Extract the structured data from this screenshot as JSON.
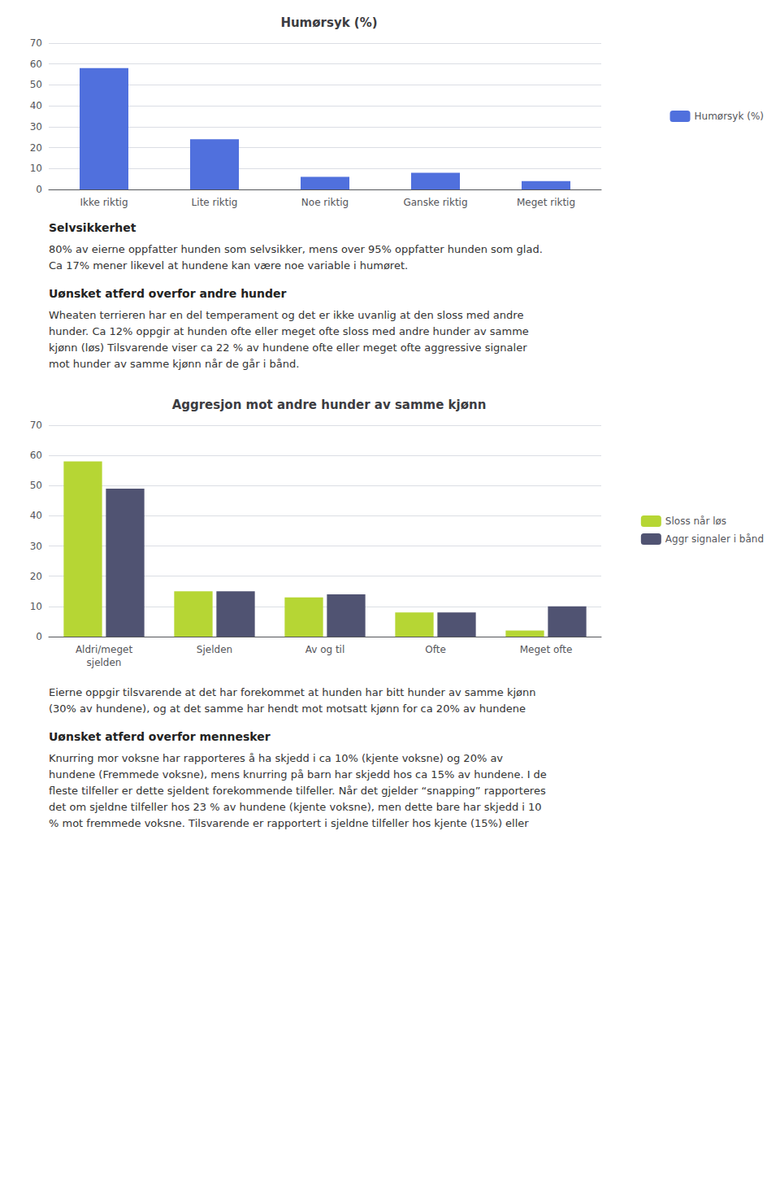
{
  "chart_data": [
    {
      "type": "bar",
      "title": "Humørsyk (%)",
      "categories": [
        "Ikke riktig",
        "Lite riktig",
        "Noe riktig",
        "Ganske riktig",
        "Meget riktig"
      ],
      "series": [
        {
          "name": "Humørsyk (%)",
          "values": [
            58,
            24,
            6,
            8,
            4
          ]
        }
      ],
      "ylim": [
        0,
        70
      ],
      "yticks": [
        0,
        10,
        20,
        30,
        40,
        50,
        60,
        70
      ],
      "grid": true,
      "legend": "right",
      "annotations": [
        {
          "title": "Selvsikkerhet",
          "text": "80% av eierne oppfatter hunden som selvsikker, mens over 95% oppfatter hunden som glad.\nCa 17% mener likevel at hundene kan være noe variable i humøret."
        },
        {
          "title": "Uønsket atferd overfor andre hunder",
          "text": "Wheaten terrieren har en del temperament og det er ikke uvanlig at den sloss med andre\nhunder. Ca 12% oppgir at hunden ofte eller meget ofte sloss med andre hunder av samme\nkjønn (løs) Tilsvarende viser ca 22 % av hundene ofte eller meget ofte aggressive signaler\nmot hunder av samme kjønn når de går i bånd."
        }
      ]
    },
    {
      "type": "bar",
      "title": "Aggresjon mot andre hunder av samme kjønn",
      "categories": [
        "Aldri/meget\nsjelden",
        "Sjelden",
        "Av og til",
        "Ofte",
        "Meget ofte"
      ],
      "series": [
        {
          "name": "Sloss når løs",
          "values": [
            58,
            15,
            13,
            8,
            2
          ]
        },
        {
          "name": "Aggr signaler i bånd",
          "values": [
            49,
            15,
            14,
            8,
            10
          ]
        }
      ],
      "ylim": [
        0,
        70
      ],
      "yticks": [
        0,
        10,
        20,
        30,
        40,
        50,
        60,
        70
      ],
      "grid": true,
      "legend": "right",
      "annotations": [
        {
          "text": "Eierne oppgir tilsvarende at det har forekommet at hunden har bitt hunder av samme kjønn\n(30% av hundene), og at det samme har hendt mot motsatt kjønn for ca 20% av hundene"
        },
        {
          "title": "Uønsket atferd overfor mennesker",
          "text": "Knurring mor voksne har rapporteres å ha skjedd i ca 10% (kjente voksne) og 20% av\nhundene (Fremmede voksne), mens knurring på barn har skjedd hos ca 15% av hundene. I de\nfleste tilfeller er dette sjeldent forekommende tilfeller. Når det gjelder “snapping” rapporteres\ndet om sjeldne tilfeller hos 23 % av hundene (kjente voksne), men dette bare har skjedd i 10\n% mot fremmede voksne. Tilsvarende er rapportert i sjeldne tilfeller hos kjente (15%) eller"
        }
      ]
    }
  ]
}
